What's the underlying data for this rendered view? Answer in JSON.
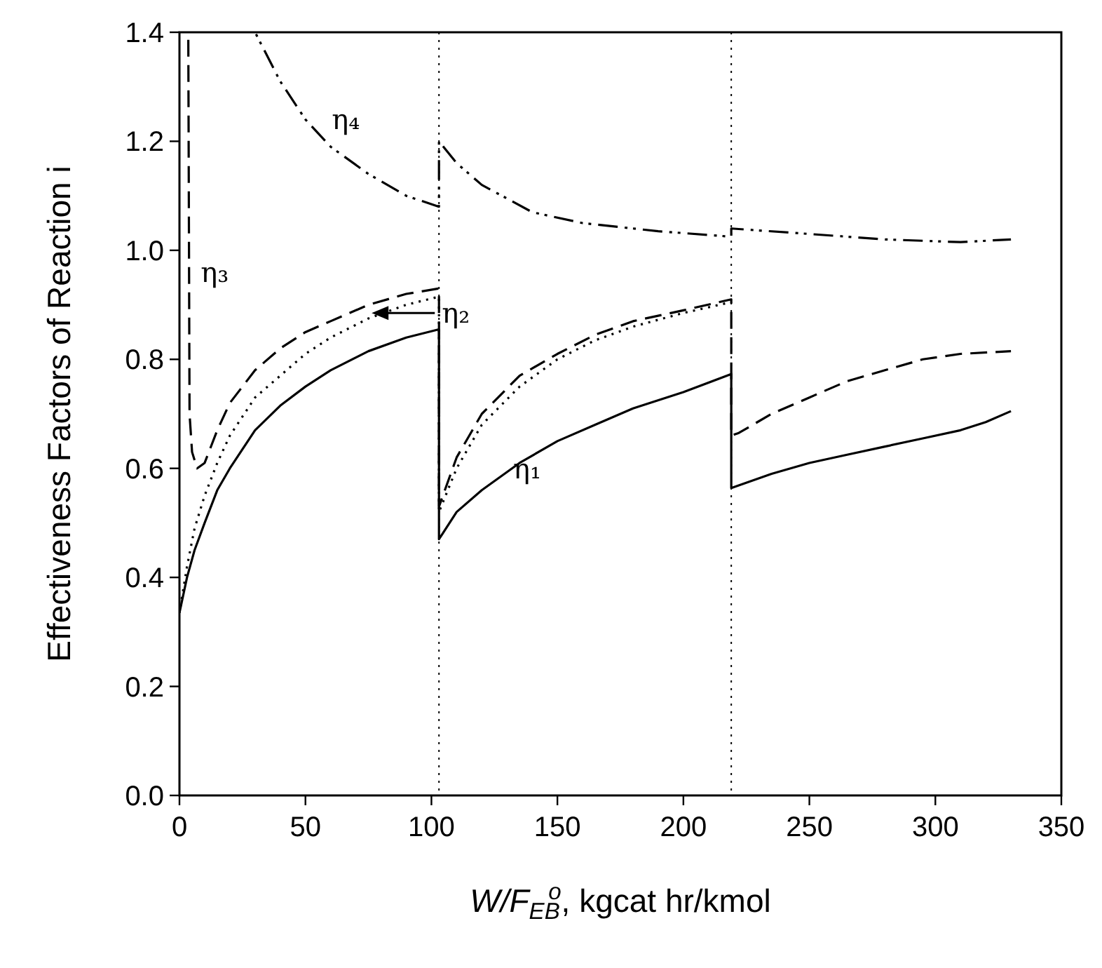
{
  "chart_data": {
    "type": "line",
    "xlabel": "W/F$_{EB}$$^{o}$, kgcat hr/kmol",
    "ylabel": "Effectiveness Factors of Reaction i",
    "xlim": [
      0,
      350
    ],
    "ylim": [
      0,
      1.4
    ],
    "xticks": [
      0,
      50,
      100,
      150,
      200,
      250,
      300,
      350
    ],
    "yticks": [
      {
        "value": 0,
        "label": "0.0"
      },
      0.2,
      0.4,
      0.6,
      0.8,
      {
        "value": 1,
        "label": "1.0"
      },
      1.2,
      1.4
    ],
    "grid": false,
    "marker": "none",
    "series": [
      {
        "color": "#000000",
        "line_style": "solid",
        "x": [
          0,
          3,
          6,
          10,
          15,
          20,
          30,
          40,
          50,
          60,
          75,
          90,
          103,
          103,
          110,
          120,
          135,
          150,
          165,
          180,
          200,
          219,
          219,
          235,
          250,
          265,
          280,
          295,
          310,
          320,
          330
        ],
        "values": [
          0.335,
          0.4,
          0.45,
          0.5,
          0.56,
          0.6,
          0.67,
          0.715,
          0.75,
          0.78,
          0.815,
          0.84,
          0.855,
          0.47,
          0.52,
          0.56,
          0.61,
          0.65,
          0.68,
          0.71,
          0.74,
          0.773,
          0.564,
          0.59,
          0.61,
          0.625,
          0.64,
          0.655,
          0.67,
          0.685,
          0.705
        ]
      },
      {
        "color": "#000000",
        "line_style": "dotted",
        "x": [
          0,
          3,
          6,
          10,
          15,
          20,
          30,
          40,
          50,
          60,
          75,
          90,
          103,
          103,
          110,
          120,
          135,
          150,
          165,
          180,
          200,
          219
        ],
        "values": [
          0.335,
          0.42,
          0.49,
          0.55,
          0.61,
          0.66,
          0.73,
          0.77,
          0.81,
          0.84,
          0.875,
          0.9,
          0.915,
          0.52,
          0.6,
          0.68,
          0.75,
          0.8,
          0.835,
          0.86,
          0.885,
          0.905
        ]
      },
      {
        "color": "#000000",
        "line_style": "dashed",
        "x": [
          3.5,
          4,
          5,
          7,
          10,
          15,
          20,
          30,
          40,
          50,
          60,
          75,
          90,
          103,
          103,
          110,
          120,
          135,
          150,
          165,
          180,
          200,
          219,
          219,
          222,
          235,
          250,
          265,
          280,
          295,
          310,
          330
        ],
        "values": [
          1.4,
          0.7,
          0.63,
          0.6,
          0.61,
          0.67,
          0.72,
          0.78,
          0.82,
          0.85,
          0.87,
          0.9,
          0.92,
          0.93,
          0.53,
          0.62,
          0.7,
          0.77,
          0.81,
          0.845,
          0.87,
          0.89,
          0.91,
          0.66,
          0.665,
          0.7,
          0.73,
          0.76,
          0.78,
          0.8,
          0.81,
          0.815
        ]
      },
      {
        "color": "#000000",
        "line_style": "dashdotdot",
        "x": [
          30,
          40,
          50,
          60,
          75,
          90,
          103,
          103,
          110,
          120,
          140,
          160,
          190,
          219,
          219,
          250,
          280,
          310,
          330
        ],
        "values": [
          1.4,
          1.31,
          1.24,
          1.19,
          1.14,
          1.1,
          1.08,
          1.2,
          1.16,
          1.12,
          1.07,
          1.05,
          1.035,
          1.025,
          1.04,
          1.03,
          1.02,
          1.015,
          1.02
        ]
      }
    ],
    "ref_lines": [
      {
        "axis": "x",
        "value": 103,
        "line_style": "dotted"
      },
      {
        "axis": "x",
        "value": 219,
        "line_style": "dotted"
      }
    ],
    "annotations": [
      "η₄",
      "η₃",
      "η₂",
      "η₁"
    ]
  }
}
